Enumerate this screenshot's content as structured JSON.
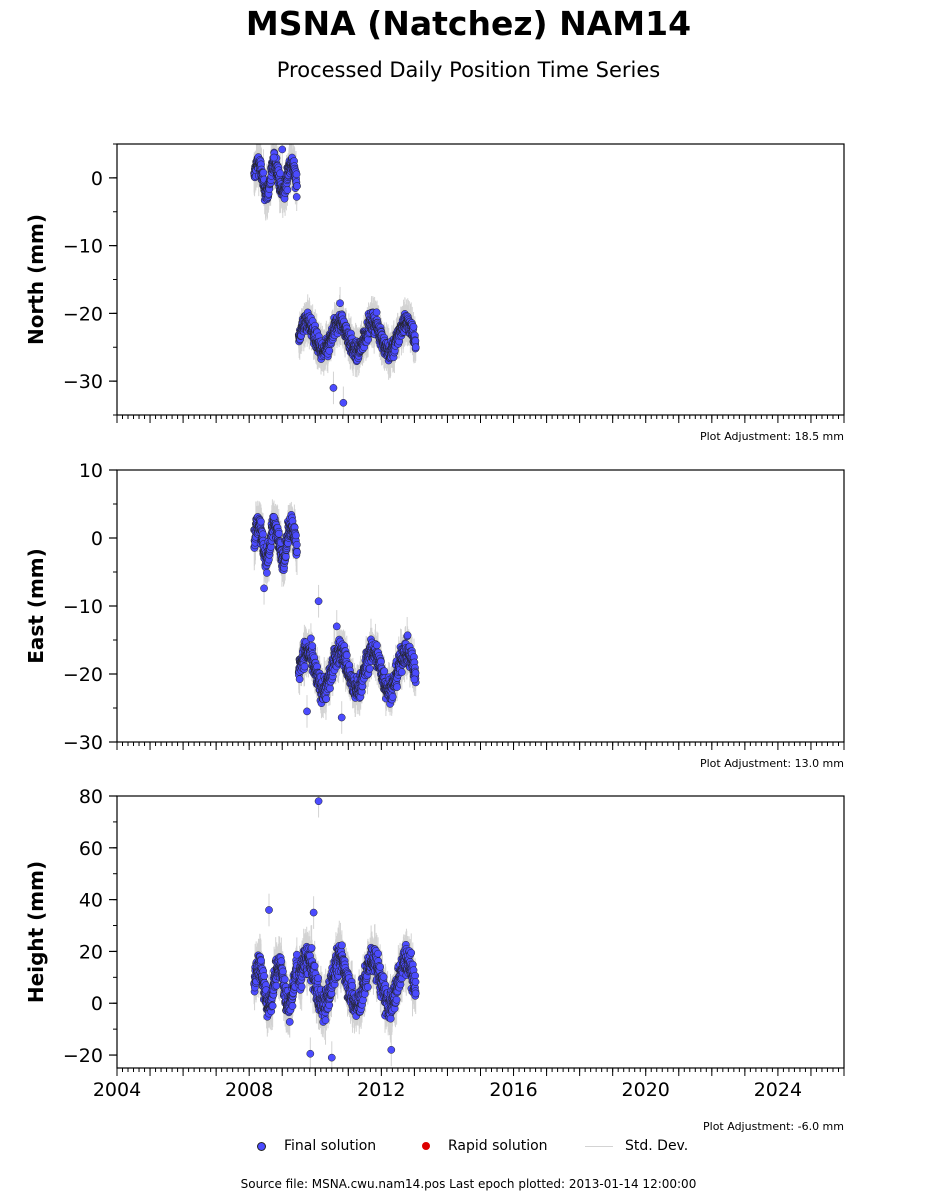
{
  "page": {
    "title": "MSNA (Natchez) NAM14",
    "subtitle": "Processed Daily Position Time Series",
    "source_note": "Source file: MSNA.cwu.nam14.pos  Last epoch plotted: 2013-01-14 12:00:00"
  },
  "legend": {
    "final_label": "Final solution",
    "rapid_label": "Rapid solution",
    "stddev_label": "Std. Dev.",
    "final_color": "#4b4bff",
    "rapid_color": "#dd0000",
    "stddev_color": "#d3d3d3"
  },
  "chart_data": [
    {
      "type": "scatter",
      "panel": "north",
      "ylabel": "North (mm)",
      "xlim": [
        2004,
        2026
      ],
      "ylim": [
        -35,
        5
      ],
      "yticks": [
        0,
        -10,
        -20,
        -30
      ],
      "ytick_labels": [
        "0",
        "−10",
        "−20",
        "−30"
      ],
      "xticks": [
        2004,
        2008,
        2012,
        2016,
        2020,
        2024
      ],
      "xtick_labels": [],
      "adjustment_label": "Plot Adjustment: 18.5 mm",
      "series": [
        {
          "name": "Final solution",
          "segments": [
            {
              "x": [
                2008.15,
                2009.45
              ],
              "center": 0,
              "amp": 2.2,
              "period": 0.5,
              "sd": 2.5
            },
            {
              "x": [
                2009.5,
                2013.04
              ],
              "center": -23.5,
              "amp": 2.2,
              "period": 1.0,
              "sd": 2.2
            }
          ]
        }
      ],
      "outliers": [
        [
          2010.55,
          -31
        ],
        [
          2010.85,
          -33.2
        ],
        [
          2008.75,
          3.0
        ],
        [
          2009.0,
          4.2
        ],
        [
          2010.75,
          -18.5
        ]
      ]
    },
    {
      "type": "scatter",
      "panel": "east",
      "ylabel": "East (mm)",
      "xlim": [
        2004,
        2026
      ],
      "ylim": [
        -30,
        10
      ],
      "yticks": [
        10,
        0,
        -10,
        -20,
        -30
      ],
      "ytick_labels": [
        "10",
        "0",
        "−10",
        "−20",
        "−30"
      ],
      "xticks": [
        2004,
        2008,
        2012,
        2016,
        2020,
        2024
      ],
      "xtick_labels": [],
      "adjustment_label": "Plot Adjustment: 13.0 mm",
      "series": [
        {
          "name": "Final solution",
          "segments": [
            {
              "x": [
                2008.15,
                2009.45
              ],
              "center": -0.5,
              "amp": 2.5,
              "period": 0.5,
              "sd": 2.5
            },
            {
              "x": [
                2009.5,
                2013.04
              ],
              "center": -19.5,
              "amp": 2.8,
              "period": 1.0,
              "sd": 2.2
            }
          ]
        }
      ],
      "outliers": [
        [
          2010.1,
          -9.3
        ],
        [
          2010.65,
          -13
        ],
        [
          2008.45,
          -7.4
        ],
        [
          2008.75,
          3.1
        ],
        [
          2013.0,
          -20.8
        ],
        [
          2010.8,
          -26.4
        ],
        [
          2009.75,
          -25.5
        ]
      ]
    },
    {
      "type": "scatter",
      "panel": "height",
      "ylabel": "Height (mm)",
      "xlim": [
        2004,
        2026
      ],
      "ylim": [
        -25,
        80
      ],
      "yticks": [
        80,
        60,
        40,
        20,
        0,
        -20
      ],
      "ytick_labels": [
        "80",
        "60",
        "40",
        "20",
        "0",
        "−20"
      ],
      "xticks": [
        2004,
        2008,
        2012,
        2016,
        2020,
        2024
      ],
      "xtick_labels": [
        "2004",
        "2008",
        "2012",
        "2016",
        "2020",
        "2024"
      ],
      "adjustment_label": "Plot Adjustment: -6.0 mm",
      "series": [
        {
          "name": "Final solution",
          "segments": [
            {
              "x": [
                2008.15,
                2009.45
              ],
              "center": 7,
              "amp": 8,
              "period": 0.6,
              "sd": 7
            },
            {
              "x": [
                2009.5,
                2013.04
              ],
              "center": 8,
              "amp": 9,
              "period": 1.0,
              "sd": 7
            }
          ]
        }
      ],
      "outliers": [
        [
          2010.1,
          78
        ],
        [
          2008.6,
          36
        ],
        [
          2009.95,
          35
        ],
        [
          2012.3,
          -18
        ],
        [
          2009.85,
          -19.5
        ],
        [
          2010.5,
          -21
        ]
      ]
    }
  ]
}
